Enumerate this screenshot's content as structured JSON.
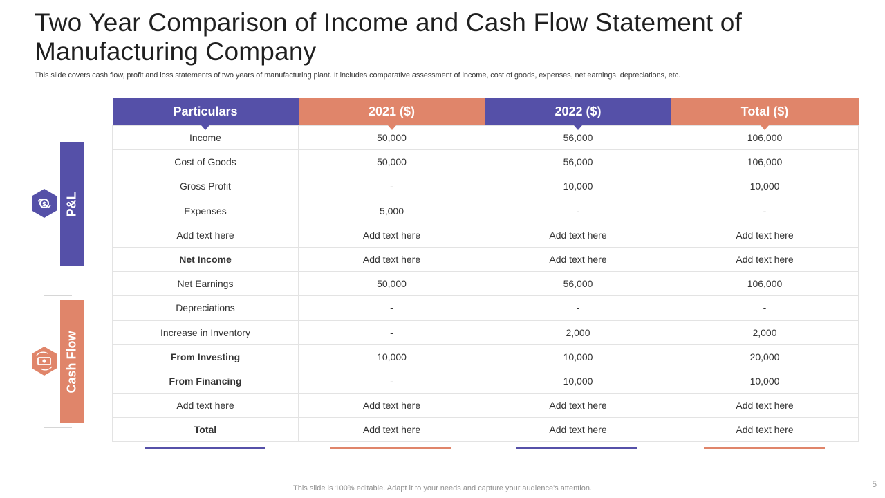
{
  "title": "Two Year Comparison of Income and Cash Flow Statement of Manufacturing Company",
  "subtitle": "This slide covers cash flow, profit and loss statements of two years of manufacturing plant. It includes comparative assessment of income, cost of goods, expenses, net earnings, depreciations, etc.",
  "side": {
    "pl_label": "P&L",
    "cashflow_label": "Cash Flow"
  },
  "colors": {
    "purple": "#5550a8",
    "orange": "#e0856a"
  },
  "table": {
    "headers": [
      "Particulars",
      "2021 ($)",
      "2022 ($)",
      "Total ($)"
    ],
    "rows": [
      [
        "Income",
        "50,000",
        "56,000",
        "106,000"
      ],
      [
        "Cost of Goods",
        "50,000",
        "56,000",
        "106,000"
      ],
      [
        "Gross Profit",
        "-",
        "10,000",
        "10,000"
      ],
      [
        "Expenses",
        "5,000",
        "-",
        "-"
      ],
      [
        "Add text here",
        "Add text here",
        "Add text here",
        "Add text here"
      ],
      [
        "Net Income",
        "Add text here",
        "Add text here",
        "Add text here"
      ],
      [
        "Net Earnings",
        "50,000",
        "56,000",
        "106,000"
      ],
      [
        "Depreciations",
        "-",
        "-",
        "-"
      ],
      [
        "Increase in Inventory",
        "-",
        "2,000",
        "2,000"
      ],
      [
        "From Investing",
        "10,000",
        "10,000",
        "20,000"
      ],
      [
        "From Financing",
        "-",
        "10,000",
        "10,000"
      ],
      [
        "Add text here",
        "Add text here",
        "Add text here",
        "Add text here"
      ],
      [
        "Total",
        "Add text here",
        "Add text here",
        "Add text here"
      ]
    ]
  },
  "footer": "This slide is 100% editable. Adapt it to your needs and capture your audience's attention.",
  "page_number": "5"
}
